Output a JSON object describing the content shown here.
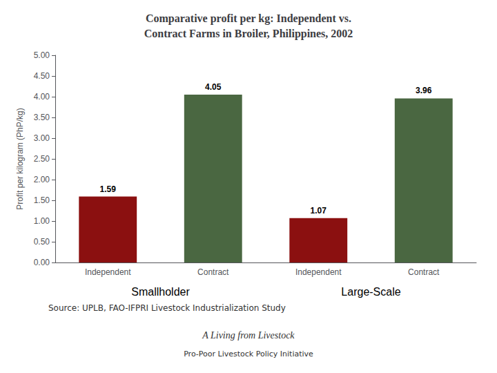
{
  "chart_data": {
    "type": "bar",
    "title": "Comparative profit per kg: Independent vs.\nContract Farms in Broiler, Philippines, 2002",
    "categories": [
      "Independent",
      "Contract",
      "Independent",
      "Contract"
    ],
    "groups": [
      "Smallholder",
      "Large-Scale"
    ],
    "values": [
      1.59,
      4.05,
      1.07,
      3.96
    ],
    "colors": [
      "#8B1010",
      "#4A6741",
      "#8B1010",
      "#4A6741"
    ],
    "ylabel": "Profit per kilogram (PhP/kg)",
    "ylim": [
      0,
      5.0
    ],
    "yticks": [
      {
        "value": 0,
        "label": "0.00"
      },
      {
        "value": 0.5,
        "label": "0.50"
      },
      {
        "value": 1,
        "label": "1.00"
      },
      {
        "value": 1.5,
        "label": "1.50"
      },
      {
        "value": 2,
        "label": "2.00"
      },
      {
        "value": 2.5,
        "label": "2.50"
      },
      {
        "value": 3,
        "label": "3.00"
      },
      {
        "value": 3.5,
        "label": "3.50"
      },
      {
        "value": 4,
        "label": "4.00"
      },
      {
        "value": 4.5,
        "label": "4.50"
      },
      {
        "value": 5,
        "label": "5.00"
      }
    ],
    "data_labels": true,
    "grid": false,
    "annotations": [
      "Source: UPLB, FAO-IFPRI Livestock Industrialization Study",
      "A Living from Livestock",
      "Pro-Poor Livestock Policy Initiative"
    ]
  }
}
